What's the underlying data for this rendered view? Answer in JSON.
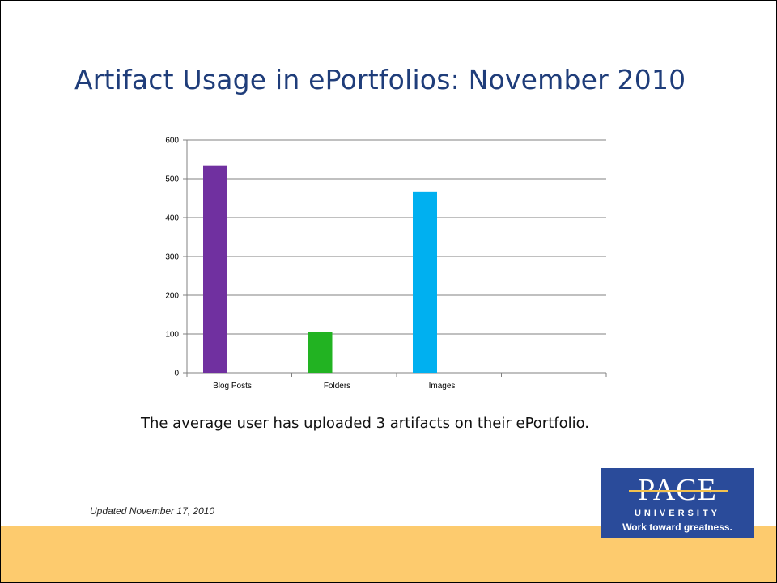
{
  "slide": {
    "title": "Artifact Usage in ePortfolios: November 2010",
    "caption": "The average user has uploaded 3 artifacts on their ePortfolio.",
    "updated": "Updated November 17, 2010"
  },
  "logo": {
    "name": "PACE",
    "subtitle": "UNIVERSITY",
    "tagline": "Work toward greatness.",
    "background": "#2a4b9a"
  },
  "colors": {
    "title": "#1f3d7a",
    "footer_band": "#fdcb6e"
  },
  "chart_data": {
    "type": "bar",
    "categories": [
      "Blog Posts",
      "Folders",
      "Images",
      ""
    ],
    "values": [
      534,
      105,
      467,
      null
    ],
    "colors": [
      "#7030a0",
      "#22b322",
      "#00b0f0"
    ],
    "ylim": [
      0,
      600
    ],
    "yticks": [
      0,
      100,
      200,
      300,
      400,
      500,
      600
    ],
    "grid": true,
    "legend": "none"
  }
}
